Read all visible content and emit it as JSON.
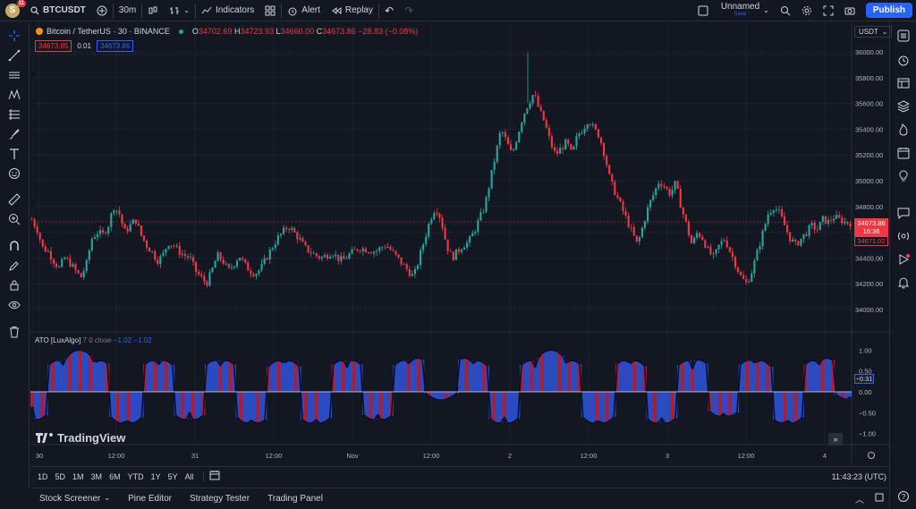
{
  "topbar": {
    "avatar_letter": "S",
    "notification_count": "11",
    "symbol": "BTCUSDT",
    "interval": "30m",
    "indicators_label": "Indicators",
    "alert_label": "Alert",
    "replay_label": "Replay",
    "layout_name": "Unnamed",
    "layout_status": "Save",
    "publish_label": "Publish"
  },
  "legend": {
    "title": "Bitcoin / TetherUS · 30 · BINANCE",
    "o_label": "O",
    "o_value": "34702.69",
    "h_label": "H",
    "h_value": "34723.93",
    "l_label": "L",
    "l_value": "34660.00",
    "c_label": "C",
    "c_value": "34673.86",
    "change": "−28.83 (−0.08%)",
    "bid": "34673.85",
    "spread": "0.01",
    "ask": "34673.86"
  },
  "currency_selector": "USDT",
  "price_axis": {
    "labels": [
      "36000.00",
      "35800.00",
      "35600.00",
      "35400.00",
      "35200.00",
      "35000.00",
      "34800.00",
      "34600.00",
      "34400.00",
      "34200.00",
      "34000.00"
    ],
    "current_price": "34673.86",
    "countdown": "16:36",
    "secondary_price": "34671.02"
  },
  "indicator": {
    "name": "ATO [LuxAlgo]",
    "params": "7 0 close",
    "value1": "−1.02",
    "value2": "−1.02",
    "axis_labels": [
      "1.00",
      "0.50",
      "0.00",
      "−0.50",
      "−1.00"
    ],
    "value_tag": "−0.31",
    "value_tag2": "−0.31"
  },
  "watermark": "TradingView",
  "time_axis": {
    "labels": [
      "30",
      "12:00",
      "31",
      "12:00",
      "Nov",
      "12:00",
      "2",
      "12:00",
      "3",
      "12:00",
      "4"
    ]
  },
  "timeframes": [
    "1D",
    "5D",
    "1M",
    "3M",
    "6M",
    "YTD",
    "1Y",
    "5Y",
    "All"
  ],
  "clock": "11:43:23 (UTC)",
  "panels": [
    "Stock Screener",
    "Pine Editor",
    "Strategy Tester",
    "Trading Panel"
  ],
  "colors": {
    "up": "#26a69a",
    "down": "#f23645",
    "background": "#131722",
    "accent": "#2962ff",
    "oscillator_blue": "#2f54d9",
    "oscillator_red": "#c2213a"
  },
  "chart_data": {
    "type": "candlestick",
    "symbol": "BTCUSDT",
    "interval": "30",
    "ylim": [
      34000,
      36000
    ],
    "close_path": [
      34700,
      34620,
      34480,
      34450,
      34380,
      34320,
      34400,
      34360,
      34300,
      34250,
      34350,
      34550,
      34600,
      34580,
      34650,
      34800,
      34750,
      34600,
      34650,
      34700,
      34580,
      34500,
      34450,
      34380,
      34420,
      34520,
      34500,
      34450,
      34420,
      34400,
      34300,
      34250,
      34200,
      34300,
      34420,
      34380,
      34300,
      34350,
      34420,
      34350,
      34300,
      34280,
      34320,
      34400,
      34480,
      34550,
      34600,
      34650,
      34600,
      34550,
      34480,
      34450,
      34420,
      34400,
      34420,
      34450,
      34400,
      34380,
      34420,
      34450,
      34480,
      34470,
      34460,
      34450,
      34480,
      34500,
      34450,
      34400,
      34350,
      34300,
      34250,
      34400,
      34550,
      34700,
      34800,
      34700,
      34500,
      34400,
      34450,
      34500,
      34520,
      34600,
      34700,
      34800,
      35000,
      35200,
      35400,
      35300,
      35200,
      35350,
      35500,
      35600,
      35680,
      35550,
      35450,
      35300,
      35200,
      35250,
      35300,
      35200,
      35350,
      35400,
      35480,
      35400,
      35350,
      35200,
      35000,
      34900,
      34800,
      34700,
      34600,
      34500,
      34650,
      34800,
      34900,
      35000,
      34950,
      34900,
      34980,
      34800,
      34650,
      34500,
      34600,
      34550,
      34450,
      34400,
      34500,
      34550,
      34450,
      34350,
      34250,
      34200,
      34300,
      34450,
      34600,
      34750,
      34800,
      34750,
      34650,
      34550,
      34500,
      34550,
      34600,
      34650,
      34620,
      34700,
      34680,
      34720,
      34700,
      34680,
      34673
    ]
  }
}
